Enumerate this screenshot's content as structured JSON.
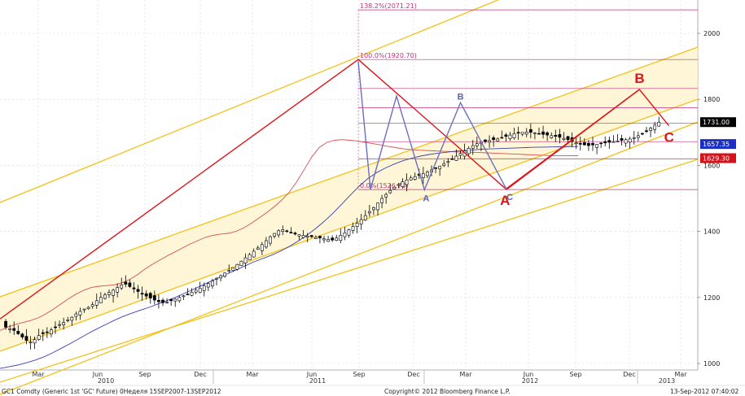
{
  "chart_data": {
    "type": "candlestick",
    "instrument_footer": "GC1 Comdty (Generic 1st 'GC' Future) 0Неделя 15SEP2007-13SEP2012",
    "copyright": "Copyright© 2012 Bloomberg Finance L.P.",
    "timestamp": "13-Sep-2012 07:40:02",
    "ylim": [
      980,
      2090
    ],
    "y_ticks": [
      "1000",
      "1200",
      "1400",
      "1600",
      "1800",
      "2000"
    ],
    "x_month_ticks": [
      "Mar",
      "Jun",
      "Sep",
      "Dec",
      "Mar",
      "Jun",
      "Sep",
      "Dec",
      "Mar",
      "Jun",
      "Sep",
      "Dec",
      "Mar"
    ],
    "x_year_labels": [
      "2010",
      "2011",
      "2012",
      "2013"
    ],
    "last_price_tags": [
      {
        "label": "1731.00",
        "value": 1731.0,
        "color": "#000000"
      },
      {
        "label": "1657.35",
        "value": 1657.35,
        "color": "#1c2fc4"
      },
      {
        "label": "1629.30",
        "value": 1629.3,
        "color": "#d4121a"
      }
    ],
    "fib_levels": [
      {
        "label": "138.2%(2071.21)",
        "value": 2071.21
      },
      {
        "label": "100.0%(1920.70)",
        "value": 1920.7
      },
      {
        "label": "0.0%(1526.70)",
        "value": 1526.7
      }
    ],
    "pattern_points": [
      {
        "label": "A",
        "date": "2011-12-29",
        "value": 1526,
        "style": "blue"
      },
      {
        "label": "B",
        "date": "2012-02-28",
        "value": 1790,
        "style": "blue"
      },
      {
        "label": "C",
        "date": "2012-05-16",
        "value": 1527,
        "style": "blue"
      },
      {
        "label": "A",
        "date": "2012-05-16",
        "value": 1527,
        "style": "red"
      },
      {
        "label": "B",
        "date": "2012-12-27",
        "value": 1830,
        "style": "red"
      },
      {
        "label": "C",
        "date": "2013-02-15",
        "value": 1720,
        "style": "red"
      }
    ],
    "series": [
      {
        "kind": "weekly",
        "values": [
          1120,
          1110,
          1105,
          1100,
          1090,
          1080,
          1070,
          1065,
          1072,
          1085,
          1090,
          1095,
          1102,
          1110,
          1118,
          1124,
          1132,
          1140,
          1150,
          1158,
          1165,
          1170,
          1178,
          1190,
          1200,
          1208,
          1215,
          1222,
          1230,
          1238,
          1240,
          1233,
          1226,
          1218,
          1210,
          1204,
          1198,
          1192,
          1187,
          1184,
          1186,
          1190,
          1195,
          1200,
          1205,
          1210,
          1216,
          1222,
          1228,
          1235,
          1242,
          1250,
          1258,
          1266,
          1274,
          1282,
          1290,
          1300,
          1310,
          1320,
          1330,
          1340,
          1350,
          1360,
          1372,
          1384,
          1394,
          1402,
          1405,
          1400,
          1395,
          1392,
          1390,
          1388,
          1386,
          1384,
          1382,
          1380,
          1378,
          1376,
          1374,
          1380,
          1388,
          1396,
          1405,
          1415,
          1425,
          1436,
          1448,
          1460,
          1472,
          1486,
          1500,
          1512,
          1524,
          1534,
          1542,
          1550,
          1556,
          1562,
          1566,
          1570,
          1575,
          1580,
          1586,
          1592,
          1598,
          1605,
          1612,
          1620,
          1628,
          1636,
          1644,
          1652,
          1660,
          1666,
          1670,
          1672,
          1675,
          1678,
          1680,
          1684,
          1688,
          1692,
          1696,
          1698,
          1700,
          1701,
          1700,
          1698,
          1696,
          1694,
          1692,
          1690,
          1688,
          1685,
          1682,
          1678,
          1672,
          1668,
          1664,
          1662,
          1660,
          1662,
          1664,
          1666,
          1668,
          1670,
          1672,
          1674,
          1676,
          1678,
          1680,
          1684,
          1690,
          1697,
          1705,
          1713,
          1722,
          1731
        ]
      },
      {
        "kind": "moving_average_red",
        "values": [
          1100,
          1110,
          1118,
          1124,
          1130,
          1138,
          1150,
          1164,
          1180,
          1196,
          1210,
          1222,
          1230,
          1234,
          1236,
          1238,
          1244,
          1254,
          1268,
          1285,
          1300,
          1313,
          1326,
          1338,
          1350,
          1362,
          1372,
          1382,
          1388,
          1392,
          1394,
          1400,
          1410,
          1424,
          1440,
          1456,
          1474,
          1494,
          1518,
          1550,
          1588,
          1626,
          1655,
          1670,
          1676,
          1678,
          1676,
          1674,
          1670,
          1666,
          1662,
          1658,
          1654,
          1650,
          1648,
          1646,
          1645,
          1644,
          1643,
          1642,
          1641,
          1640,
          1640,
          1639,
          1638,
          1637,
          1636,
          1635,
          1634,
          1633,
          1632,
          1631,
          1630,
          1629,
          1629,
          1629,
          1629.3
        ]
      },
      {
        "kind": "moving_average_blue",
        "values": [
          985,
          990,
          995,
          1002,
          1010,
          1020,
          1032,
          1046,
          1060,
          1075,
          1090,
          1104,
          1117,
          1130,
          1142,
          1152,
          1161,
          1170,
          1180,
          1190,
          1200,
          1212,
          1224,
          1236,
          1248,
          1260,
          1272,
          1284,
          1296,
          1308,
          1318,
          1328,
          1340,
          1354,
          1370,
          1388,
          1408,
          1430,
          1455,
          1482,
          1510,
          1537,
          1560,
          1578,
          1592,
          1604,
          1614,
          1622,
          1628,
          1633,
          1637,
          1640,
          1643,
          1645,
          1647,
          1649,
          1650,
          1651,
          1652,
          1653,
          1654,
          1655,
          1655.5,
          1656,
          1656.5,
          1657,
          1657.35
        ]
      }
    ]
  }
}
